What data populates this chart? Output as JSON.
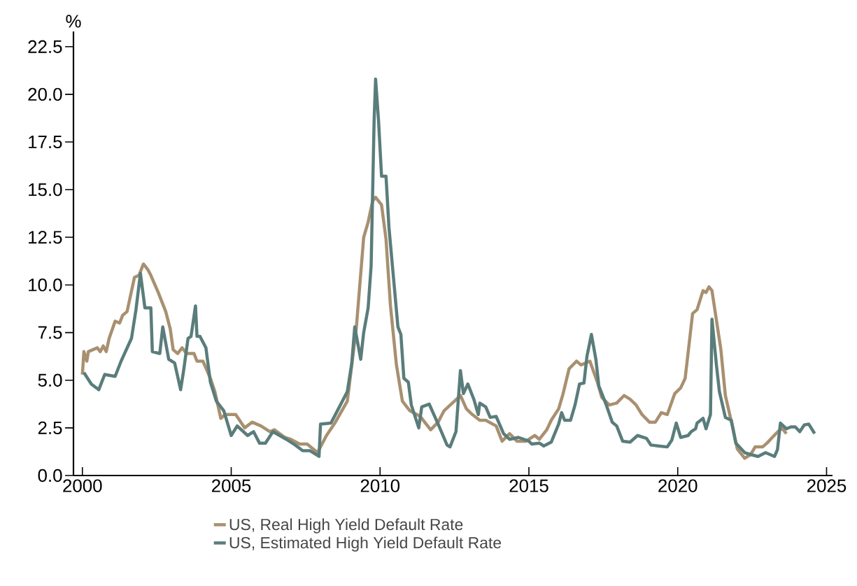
{
  "chart_data": {
    "type": "line",
    "ylabel": "%",
    "xlim": [
      1999.7,
      2025.2
    ],
    "ylim": [
      0,
      23.3
    ],
    "xticks": [
      2000,
      2005,
      2010,
      2015,
      2020,
      2025
    ],
    "yticks": [
      {
        "value": 0,
        "label": "0.0"
      },
      {
        "value": 2.5,
        "label": "2.5"
      },
      {
        "value": 5,
        "label": "5.0"
      },
      {
        "value": 7.5,
        "label": "7.5"
      },
      {
        "value": 10,
        "label": "10.0"
      },
      {
        "value": 12.5,
        "label": "12.5"
      },
      {
        "value": 15,
        "label": "15.0"
      },
      {
        "value": 17.5,
        "label": "17.5"
      },
      {
        "value": 20,
        "label": "20.0"
      },
      {
        "value": 22.5,
        "label": "22.5"
      }
    ],
    "legend": "bottom",
    "series": [
      {
        "name": "US, Real High Yield Default Rate",
        "color": "#a89070",
        "x": [
          2000.0,
          2000.05,
          2000.15,
          2000.2,
          2000.5,
          2000.6,
          2000.7,
          2000.8,
          2000.9,
          2001.1,
          2001.25,
          2001.35,
          2001.5,
          2001.75,
          2001.9,
          2002.05,
          2002.2,
          2002.3,
          2002.55,
          2002.8,
          2002.95,
          2003.05,
          2003.2,
          2003.35,
          2003.5,
          2003.75,
          2003.85,
          2004.05,
          2004.3,
          2004.45,
          2004.65,
          2004.8,
          2005.15,
          2005.45,
          2005.7,
          2006.0,
          2006.3,
          2006.45,
          2006.8,
          2007.0,
          2007.3,
          2007.55,
          2007.9,
          2008.2,
          2008.5,
          2008.9,
          2009.2,
          2009.45,
          2009.6,
          2009.75,
          2009.85,
          2010.05,
          2010.2,
          2010.35,
          2010.55,
          2010.75,
          2011.0,
          2011.35,
          2011.7,
          2011.95,
          2012.15,
          2012.5,
          2012.7,
          2012.9,
          2013.1,
          2013.35,
          2013.55,
          2013.9,
          2014.1,
          2014.35,
          2014.6,
          2014.9,
          2015.2,
          2015.35,
          2015.6,
          2015.75,
          2016.0,
          2016.15,
          2016.35,
          2016.6,
          2016.75,
          2017.05,
          2017.3,
          2017.45,
          2017.7,
          2017.95,
          2018.2,
          2018.4,
          2018.6,
          2018.8,
          2019.05,
          2019.25,
          2019.45,
          2019.65,
          2019.9,
          2020.1,
          2020.25,
          2020.5,
          2020.65,
          2020.85,
          2020.95,
          2021.05,
          2021.15,
          2021.45,
          2021.6,
          2021.85,
          2022.0,
          2022.25,
          2022.45,
          2022.6,
          2022.85,
          2023.0,
          2023.3,
          2023.5,
          2023.65
        ],
        "values": [
          5.3,
          6.5,
          6.0,
          6.5,
          6.7,
          6.5,
          6.8,
          6.5,
          7.2,
          8.1,
          8.0,
          8.4,
          8.6,
          10.4,
          10.5,
          11.1,
          10.8,
          10.5,
          9.6,
          8.6,
          7.7,
          6.6,
          6.4,
          6.7,
          6.4,
          6.4,
          6.0,
          6.0,
          5.1,
          4.4,
          3.0,
          3.2,
          3.2,
          2.5,
          2.8,
          2.6,
          2.3,
          2.4,
          2.0,
          1.9,
          1.65,
          1.65,
          1.2,
          2.1,
          2.8,
          3.9,
          7.7,
          12.5,
          13.3,
          14.4,
          14.6,
          14.2,
          12.4,
          8.9,
          5.8,
          3.9,
          3.4,
          3.1,
          2.4,
          2.8,
          3.4,
          3.9,
          4.2,
          3.5,
          3.2,
          2.9,
          2.9,
          2.6,
          1.8,
          2.2,
          1.8,
          1.8,
          2.1,
          1.9,
          2.4,
          2.9,
          3.5,
          4.3,
          5.6,
          6.0,
          5.8,
          6.0,
          4.9,
          4.1,
          3.7,
          3.8,
          4.2,
          4.0,
          3.7,
          3.2,
          2.8,
          2.8,
          3.3,
          3.2,
          4.3,
          4.6,
          5.1,
          8.5,
          8.7,
          9.7,
          9.6,
          9.9,
          9.7,
          6.6,
          4.2,
          2.5,
          1.4,
          0.9,
          1.1,
          1.5,
          1.5,
          1.7,
          2.2,
          2.5,
          2.2
        ]
      },
      {
        "name": "US, Estimated High Yield Default Rate",
        "color": "#5a7d7b",
        "x": [
          2000.05,
          2000.3,
          2000.55,
          2000.75,
          2001.1,
          2001.3,
          2001.65,
          2001.8,
          2001.95,
          2002.1,
          2002.3,
          2002.35,
          2002.6,
          2002.7,
          2002.9,
          2003.1,
          2003.3,
          2003.4,
          2003.55,
          2003.65,
          2003.8,
          2003.85,
          2003.95,
          2004.15,
          2004.3,
          2004.5,
          2004.75,
          2005.0,
          2005.2,
          2005.55,
          2005.75,
          2005.95,
          2006.15,
          2006.4,
          2006.85,
          2007.15,
          2007.4,
          2007.65,
          2007.95,
          2008.0,
          2008.35,
          2008.6,
          2008.9,
          2009.05,
          2009.15,
          2009.35,
          2009.45,
          2009.6,
          2009.7,
          2009.8,
          2009.85,
          2009.95,
          2010.05,
          2010.2,
          2010.3,
          2010.6,
          2010.7,
          2010.8,
          2010.95,
          2011.05,
          2011.3,
          2011.4,
          2011.65,
          2011.95,
          2012.25,
          2012.35,
          2012.55,
          2012.7,
          2012.8,
          2012.95,
          2013.15,
          2013.3,
          2013.35,
          2013.55,
          2013.7,
          2013.9,
          2014.15,
          2014.35,
          2014.65,
          2015.0,
          2015.1,
          2015.35,
          2015.5,
          2015.75,
          2016.0,
          2016.1,
          2016.2,
          2016.4,
          2016.55,
          2016.7,
          2016.85,
          2016.95,
          2017.1,
          2017.25,
          2017.35,
          2017.6,
          2017.8,
          2017.95,
          2018.15,
          2018.4,
          2018.65,
          2018.95,
          2019.1,
          2019.35,
          2019.65,
          2019.8,
          2019.95,
          2020.1,
          2020.35,
          2020.45,
          2020.6,
          2020.65,
          2020.85,
          2020.95,
          2021.1,
          2021.15,
          2021.3,
          2021.4,
          2021.6,
          2021.8,
          2021.95,
          2022.25,
          2022.45,
          2022.7,
          2022.95,
          2023.25,
          2023.35,
          2023.45,
          2023.65,
          2023.8,
          2023.95,
          2024.1,
          2024.25,
          2024.4,
          2024.6
        ],
        "values": [
          5.4,
          4.8,
          4.5,
          5.3,
          5.2,
          6.0,
          7.2,
          8.7,
          10.6,
          8.8,
          8.8,
          6.5,
          6.4,
          7.8,
          6.1,
          5.9,
          4.5,
          5.5,
          7.2,
          7.3,
          8.9,
          7.3,
          7.3,
          6.7,
          4.9,
          3.9,
          3.4,
          2.1,
          2.6,
          2.1,
          2.3,
          1.7,
          1.7,
          2.3,
          1.9,
          1.6,
          1.3,
          1.3,
          1.0,
          2.7,
          2.75,
          3.5,
          4.4,
          5.9,
          7.8,
          6.1,
          7.5,
          8.8,
          11.0,
          18.6,
          20.8,
          18.6,
          15.7,
          15.7,
          13.0,
          7.8,
          7.4,
          5.1,
          4.9,
          3.7,
          2.5,
          3.6,
          3.75,
          2.7,
          1.6,
          1.5,
          2.3,
          5.5,
          4.3,
          4.8,
          4.0,
          3.2,
          3.8,
          3.6,
          3.05,
          3.1,
          2.2,
          1.9,
          2.0,
          1.8,
          1.65,
          1.7,
          1.55,
          1.75,
          2.7,
          3.3,
          2.9,
          2.9,
          3.7,
          4.8,
          4.85,
          6.25,
          7.4,
          6.1,
          4.7,
          3.7,
          2.8,
          2.6,
          1.8,
          1.75,
          2.1,
          1.95,
          1.6,
          1.55,
          1.5,
          1.85,
          2.75,
          2.0,
          2.1,
          2.3,
          2.45,
          2.75,
          3.0,
          2.45,
          3.2,
          8.2,
          5.8,
          4.4,
          3.05,
          2.9,
          1.7,
          1.2,
          1.1,
          1.0,
          1.2,
          1.0,
          1.35,
          2.75,
          2.45,
          2.55,
          2.55,
          2.3,
          2.65,
          2.7,
          2.2
        ]
      }
    ]
  }
}
